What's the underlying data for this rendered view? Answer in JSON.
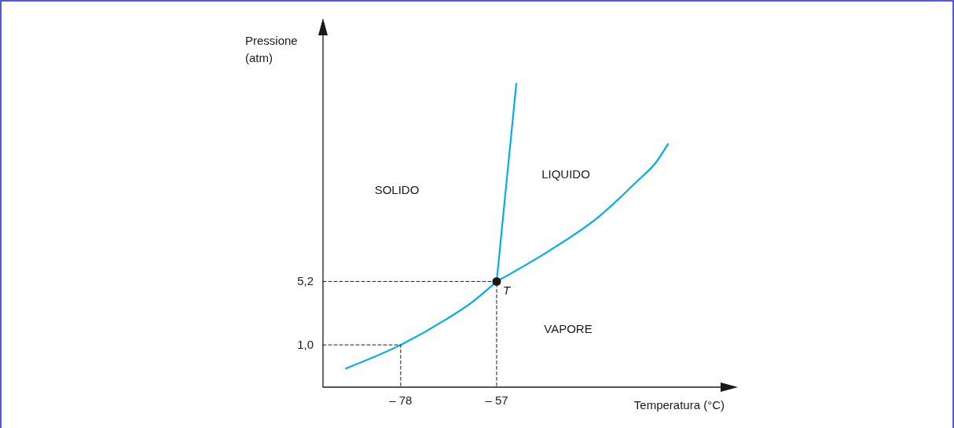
{
  "chart_data": {
    "type": "line",
    "xlabel": "Temperatura (°C)",
    "ylabel": "Pressione (atm)",
    "xlim": [
      -95,
      -8
    ],
    "ylim": [
      -1.8,
      21.5
    ],
    "xticks": [
      {
        "value": -78,
        "label": "– 78"
      },
      {
        "value": -57,
        "label": "– 57"
      }
    ],
    "yticks": [
      {
        "value": 1.0,
        "label": "1,0"
      },
      {
        "value": 5.2,
        "label": "5,2"
      }
    ],
    "grid": false,
    "line_style": "solid",
    "marker": "none",
    "series": [
      {
        "color": "#00aeef",
        "x": [
          -90.0,
          -78,
          -67.7,
          -62.5,
          -57
        ],
        "values": [
          -0.56,
          1.0,
          2.76,
          3.8,
          5.2
        ]
      },
      {
        "color": "#00aeef",
        "x": [
          -57,
          -52.7
        ],
        "values": [
          5.2,
          18.3
        ]
      },
      {
        "color": "#00aeef",
        "x": [
          -57,
          -45.3,
          -35.0,
          -26.4,
          -22.1,
          -19.5
        ],
        "values": [
          5.2,
          7.27,
          9.4,
          11.8,
          13.1,
          14.3
        ]
      },
      {
        "color": "#1a1a1a",
        "line_style": "dashed",
        "x": [
          -95,
          -78,
          -78
        ],
        "values": [
          1.0,
          1.0,
          -1.8
        ]
      },
      {
        "color": "#1a1a1a",
        "line_style": "dashed",
        "x": [
          -95,
          -57,
          -57
        ],
        "values": [
          5.2,
          5.2,
          -1.8
        ]
      },
      {
        "type": "scatter",
        "marker": "circle",
        "color": "#1a1a1a",
        "x": [
          -57
        ],
        "values": [
          5.2
        ]
      }
    ],
    "annotations": [
      {
        "text": "T",
        "x": -57,
        "y": 5.2
      },
      "SOLIDO",
      "LIQUIDO",
      "VAPORE"
    ]
  }
}
